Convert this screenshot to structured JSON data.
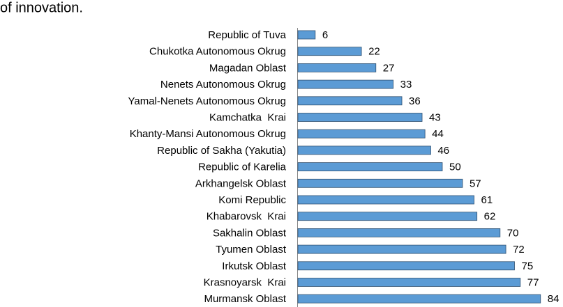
{
  "header_text": "of innovation.",
  "chart_data": {
    "type": "bar",
    "orientation": "horizontal",
    "color": "#5b9bd5",
    "categories": [
      "Republic of Tuva",
      "Chukotka Autonomous Okrug",
      "Magadan Oblast",
      "Nenets Autonomous Okrug",
      "Yamal-Nenets Autonomous Okrug",
      "Kamchatka  Krai",
      "Khanty-Mansi Autonomous Okrug",
      "Republic of Sakha (Yakutia)",
      "Republic of Karelia",
      "Arkhangelsk Oblast",
      "Komi Republic",
      "Khabarovsk  Krai",
      "Sakhalin Oblast",
      "Tyumen Oblast",
      "Irkutsk Oblast",
      "Krasnoyarsk  Krai",
      "Murmansk Oblast"
    ],
    "values": [
      6,
      22,
      27,
      33,
      36,
      43,
      44,
      46,
      50,
      57,
      61,
      62,
      70,
      72,
      75,
      77,
      84
    ]
  }
}
